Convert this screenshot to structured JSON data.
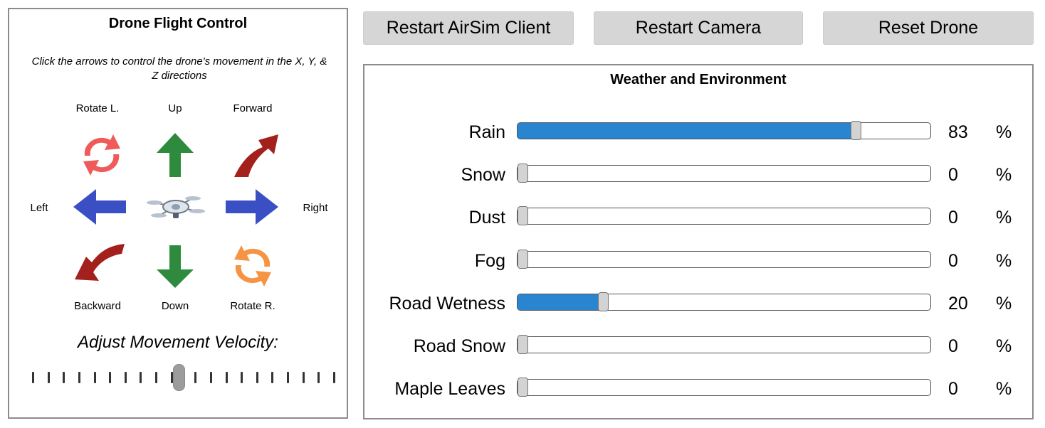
{
  "flight_control": {
    "title": "Drone Flight Control",
    "instructions": "Click the arrows to control the drone's movement in the X, Y, & Z directions",
    "labels": {
      "rotate_left": "Rotate L.",
      "up": "Up",
      "forward": "Forward",
      "left": "Left",
      "right": "Right",
      "backward": "Backward",
      "down": "Down",
      "rotate_right": "Rotate R."
    },
    "icons": {
      "rotate_left": "rotate-left-icon",
      "up": "arrow-up-icon",
      "forward": "arrow-forward-icon",
      "left": "arrow-left-icon",
      "right": "arrow-right-icon",
      "backward": "arrow-backward-icon",
      "down": "arrow-down-icon",
      "rotate_right": "rotate-right-icon",
      "center": "drone-icon"
    },
    "colors": {
      "rotate_left": "#f05a5a",
      "up": "#2e8b3e",
      "forward": "#a3201d",
      "left": "#3a4fc4",
      "right": "#3a4fc4",
      "backward": "#a3201d",
      "down": "#2e8b3e",
      "rotate_right": "#f59445"
    },
    "velocity": {
      "label": "Adjust Movement Velocity:",
      "tick_count": 20,
      "selected_index": 9
    }
  },
  "buttons": {
    "restart_airsim": "Restart AirSim Client",
    "restart_camera": "Restart Camera",
    "reset_drone": "Reset Drone"
  },
  "weather": {
    "title": "Weather and Environment",
    "fill_color": "#2a85d0",
    "items": [
      {
        "label": "Rain",
        "value": 83,
        "unit": "%"
      },
      {
        "label": "Snow",
        "value": 0,
        "unit": "%"
      },
      {
        "label": "Dust",
        "value": 0,
        "unit": "%"
      },
      {
        "label": "Fog",
        "value": 0,
        "unit": "%"
      },
      {
        "label": "Road Wetness",
        "value": 20,
        "unit": "%"
      },
      {
        "label": "Road Snow",
        "value": 0,
        "unit": "%"
      },
      {
        "label": "Maple Leaves",
        "value": 0,
        "unit": "%"
      }
    ]
  }
}
